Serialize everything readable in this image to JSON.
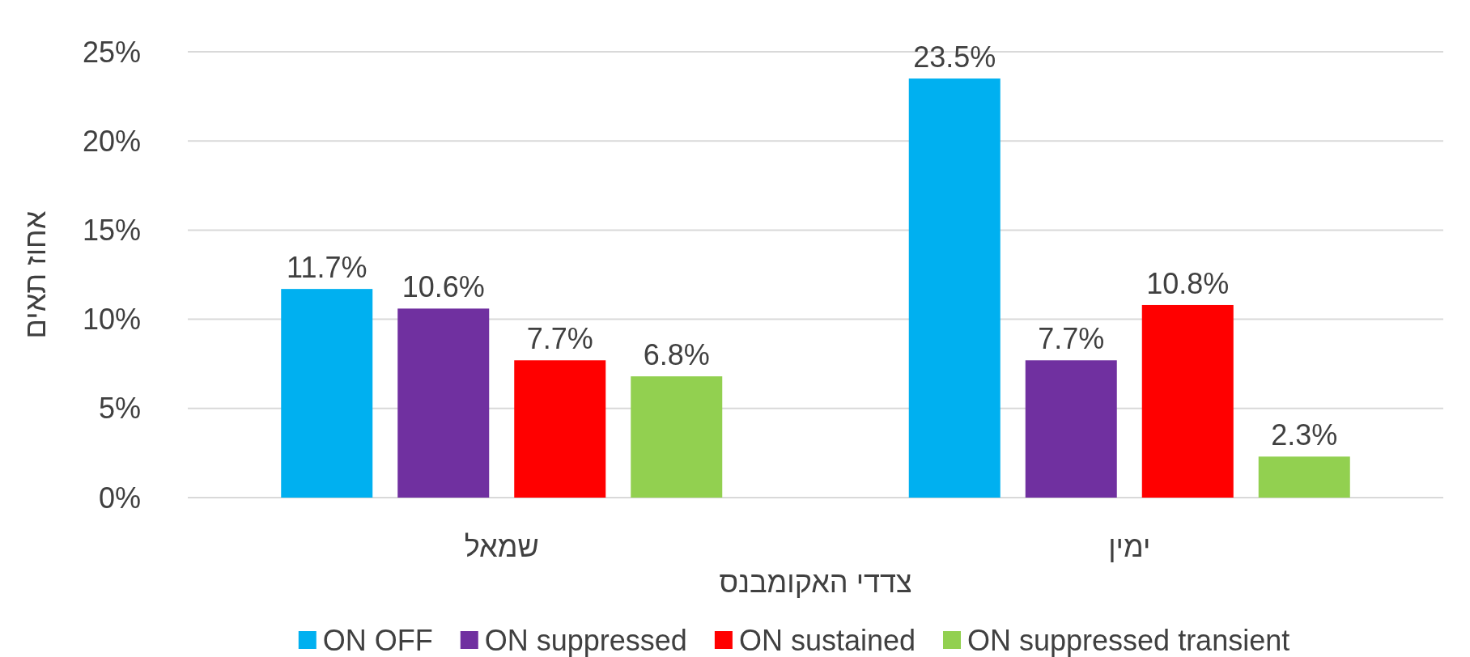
{
  "chart_data": {
    "type": "bar",
    "xlabel": "צדדי האקומבנס",
    "ylabel": "אחוז תאים",
    "categories": [
      "שמאל",
      "ימין"
    ],
    "series": [
      {
        "name": "ON OFF",
        "color": "#00b0f0",
        "values": [
          11.7,
          23.5
        ],
        "value_labels": [
          "11.7%",
          "23.5%"
        ]
      },
      {
        "name": "ON suppressed",
        "color": "#7030a0",
        "values": [
          10.6,
          7.7
        ],
        "value_labels": [
          "10.6%",
          "7.7%"
        ]
      },
      {
        "name": "ON sustained",
        "color": "#ff0000",
        "values": [
          7.7,
          10.8
        ],
        "value_labels": [
          "7.7%",
          "10.8%"
        ]
      },
      {
        "name": "ON suppressed transient",
        "color": "#92d050",
        "values": [
          6.8,
          2.3
        ],
        "value_labels": [
          "6.8%",
          "2.3%"
        ]
      }
    ],
    "ylim": [
      0,
      25
    ],
    "yticks": [
      {
        "value": 0,
        "label": "0%"
      },
      {
        "value": 5,
        "label": "5%"
      },
      {
        "value": 10,
        "label": "10%"
      },
      {
        "value": 15,
        "label": "15%"
      },
      {
        "value": 20,
        "label": "20%"
      },
      {
        "value": 25,
        "label": "25%"
      }
    ],
    "grid": "y",
    "legend": "bottom"
  }
}
